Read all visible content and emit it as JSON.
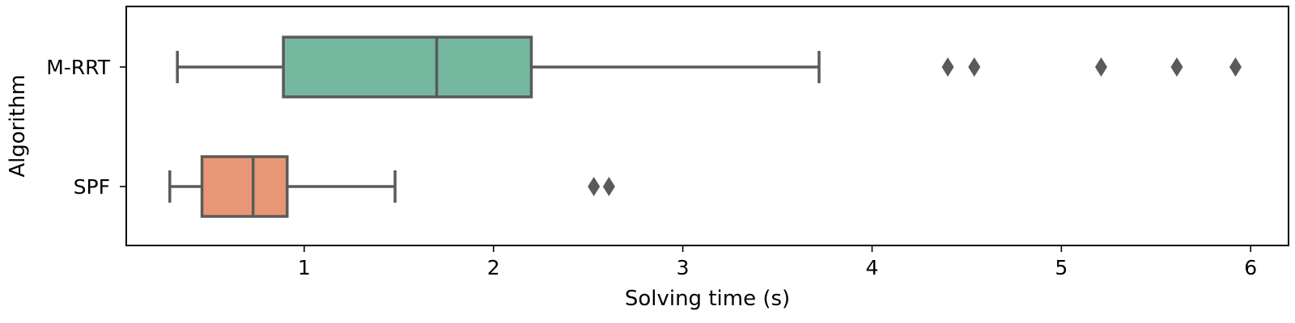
{
  "chart_data": {
    "type": "box",
    "orientation": "horizontal",
    "xlabel": "Solving time (s)",
    "ylabel": "Algorithm",
    "xlim": [
      0.06,
      6.2
    ],
    "xticks": [
      1,
      2,
      3,
      4,
      5,
      6
    ],
    "grid": false,
    "categories": [
      "M-RRT",
      "SPF"
    ],
    "boxes": [
      {
        "category": "M-RRT",
        "color": "#76b7a0",
        "whisker_low": 0.33,
        "q1": 0.89,
        "median": 1.7,
        "q3": 2.2,
        "whisker_high": 3.72,
        "outliers": [
          4.4,
          4.54,
          5.21,
          5.61,
          5.92
        ]
      },
      {
        "category": "SPF",
        "color": "#e99676",
        "whisker_low": 0.29,
        "q1": 0.46,
        "median": 0.73,
        "q3": 0.91,
        "whisker_high": 1.48,
        "outliers": [
          2.53,
          2.61
        ]
      }
    ],
    "line_color": "#5a5a5a"
  }
}
